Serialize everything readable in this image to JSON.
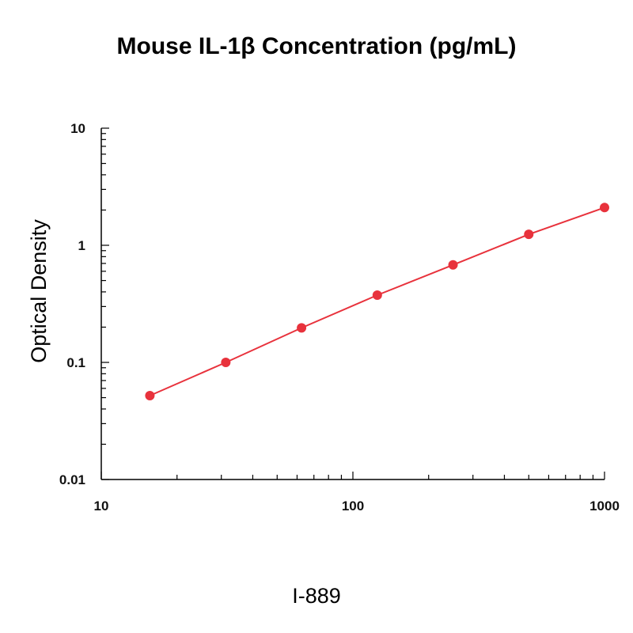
{
  "chart_data": {
    "type": "line",
    "title": "Mouse IL-1β Concentration (pg/mL)",
    "xlabel": "",
    "ylabel": "Optical Density",
    "x_scale": "log",
    "y_scale": "log",
    "xlim": [
      10,
      1000
    ],
    "ylim": [
      0.01,
      10
    ],
    "x_tick_labels": [
      "10",
      "100",
      "1000"
    ],
    "y_tick_labels": [
      "0.01",
      "0.1",
      "1",
      "10"
    ],
    "grid": false,
    "series": [
      {
        "color": "#e8323c",
        "x": [
          15.6,
          31.25,
          62.5,
          125,
          250,
          500,
          1000
        ],
        "y": [
          0.052,
          0.1,
          0.197,
          0.375,
          0.68,
          1.24,
          2.1
        ]
      }
    ]
  },
  "caption": "I-889"
}
